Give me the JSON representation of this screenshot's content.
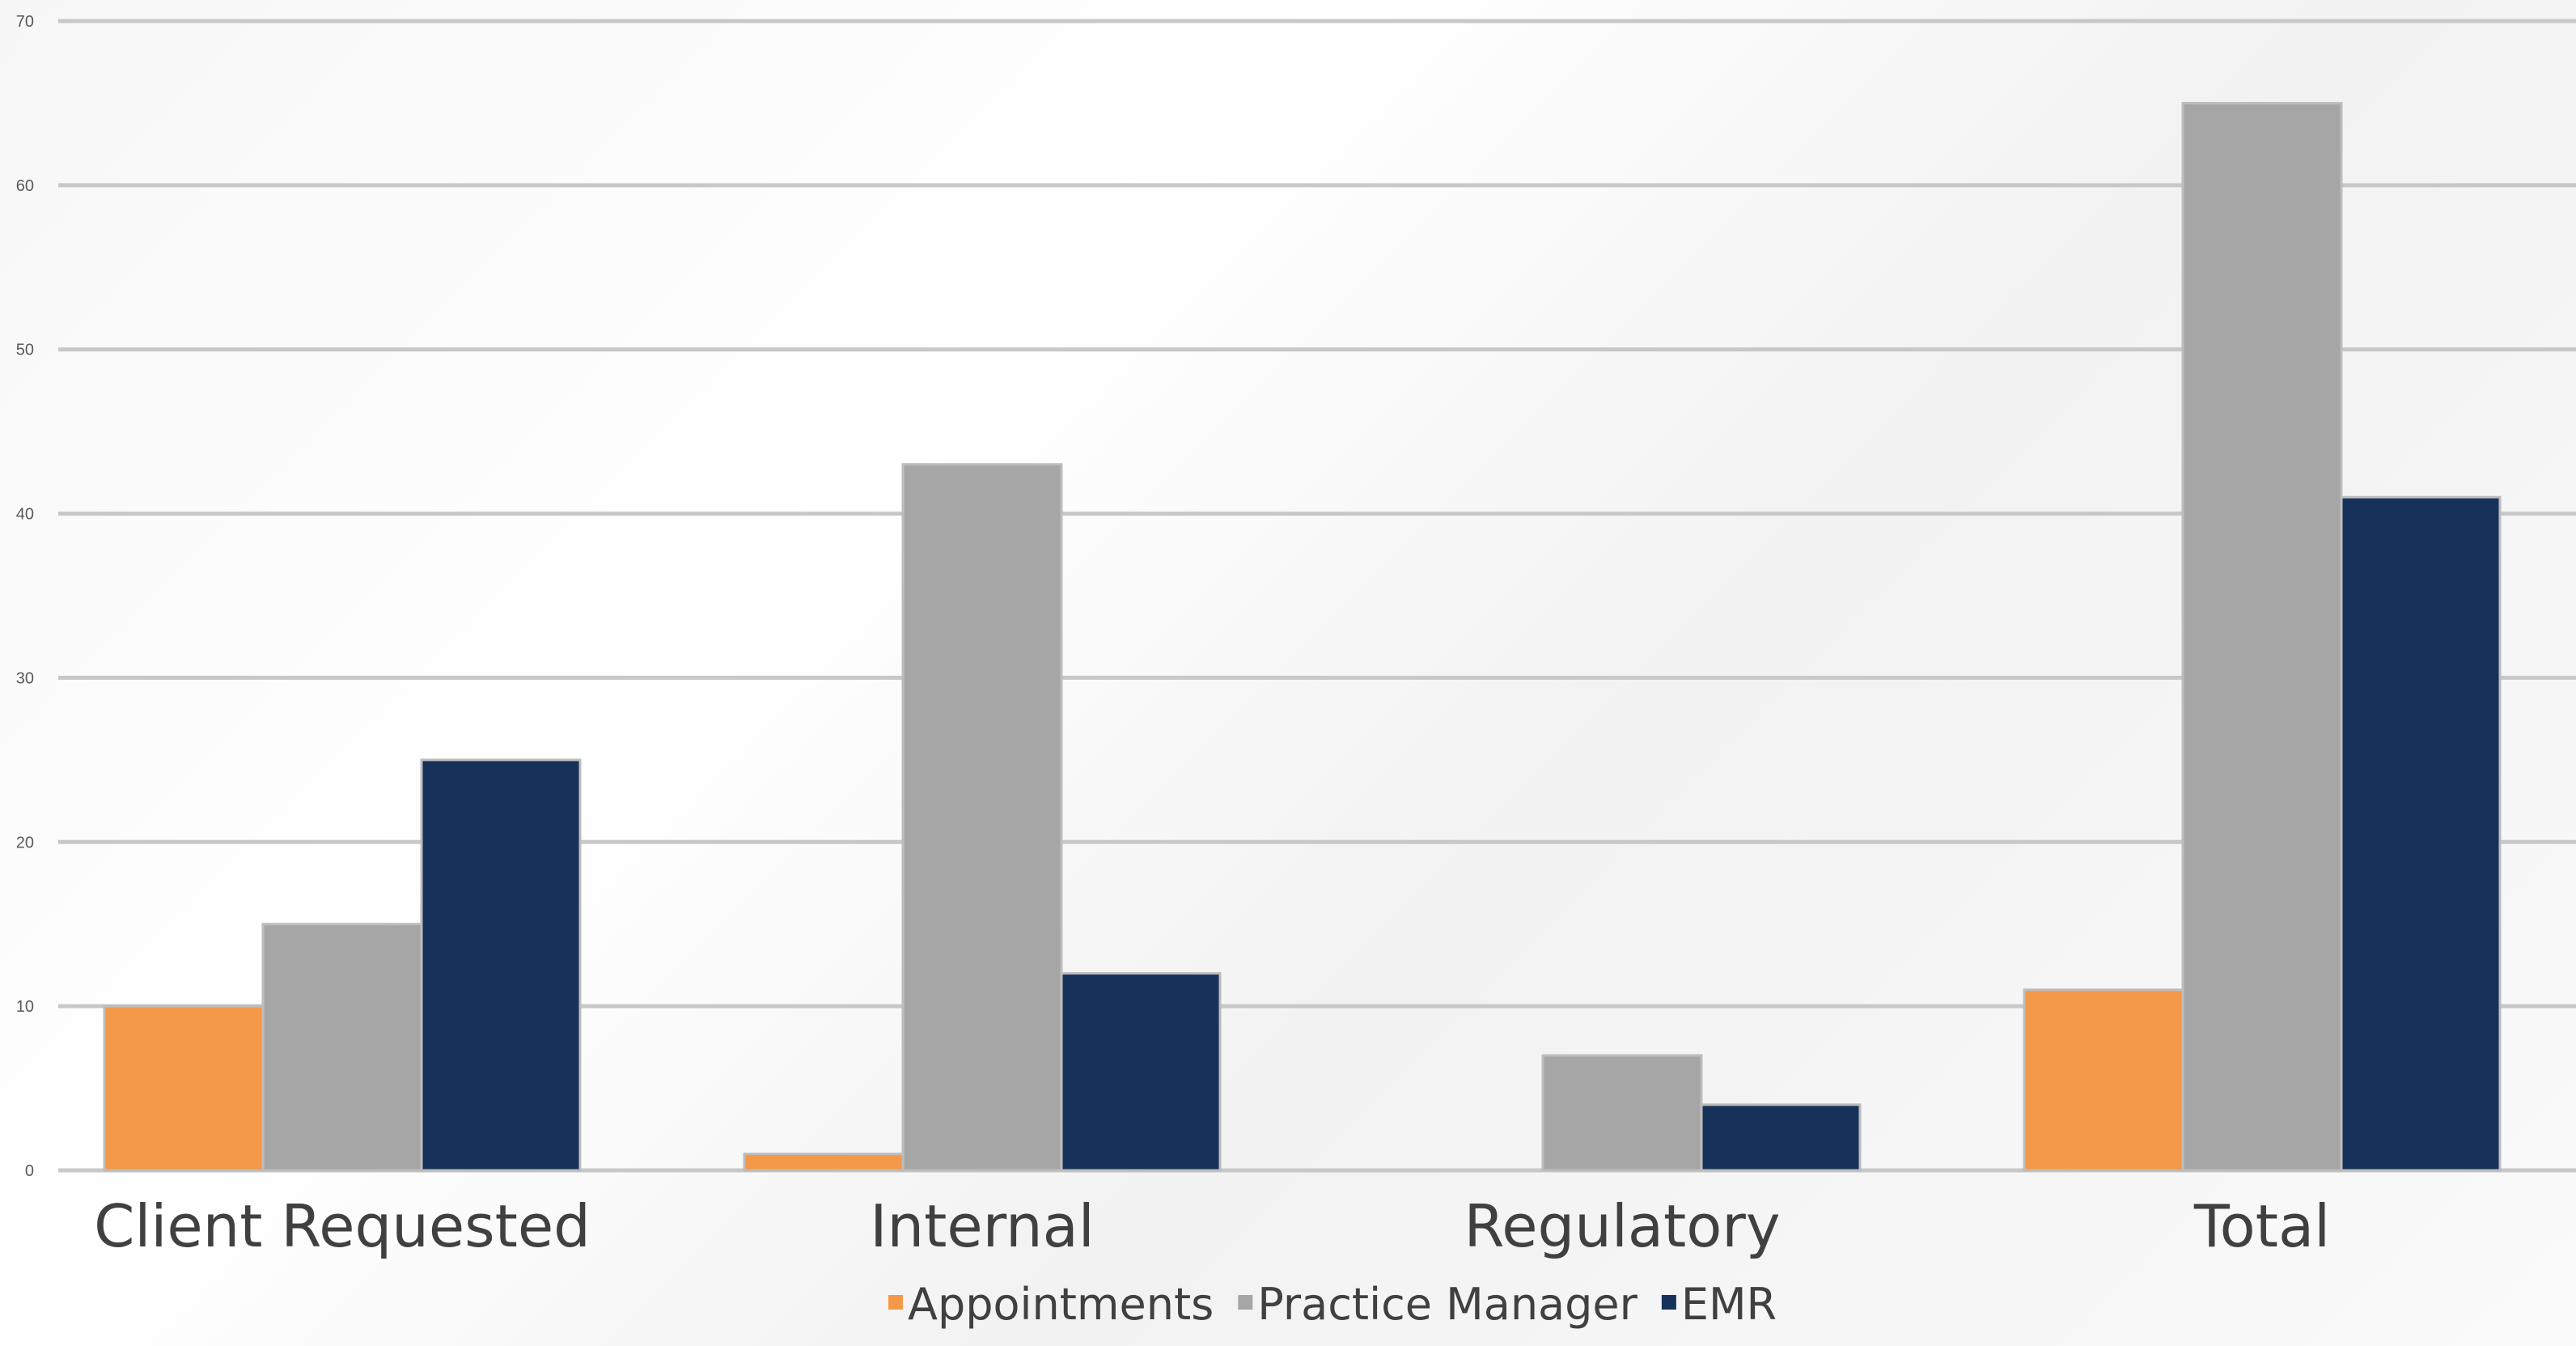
{
  "chart_data": {
    "type": "bar",
    "categories": [
      "Client Requested",
      "Internal",
      "Regulatory",
      "Total"
    ],
    "series": [
      {
        "name": "Appointments",
        "color": "#F4994A",
        "values": [
          10,
          1,
          0,
          11
        ]
      },
      {
        "name": "Practice Manager",
        "color": "#A6A6A6",
        "values": [
          15,
          43,
          7,
          65
        ]
      },
      {
        "name": "EMR",
        "color": "#17325A",
        "values": [
          25,
          12,
          4,
          41
        ]
      }
    ],
    "ylim": [
      0,
      70
    ],
    "yticks": [
      0,
      10,
      20,
      30,
      40,
      50,
      60,
      70
    ],
    "grid": true,
    "legend_position": "bottom",
    "title": "",
    "xlabel": "",
    "ylabel": ""
  }
}
